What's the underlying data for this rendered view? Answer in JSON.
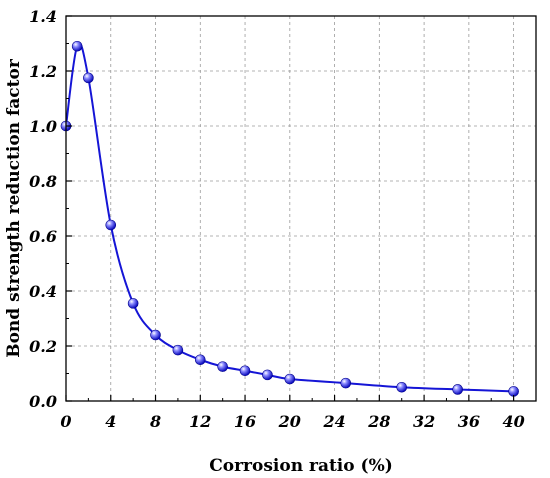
{
  "chart_data": {
    "type": "line",
    "title": "",
    "xlabel": "Corrosion ratio (%)",
    "ylabel": "Bond strength reduction factor",
    "xlim": [
      0,
      42
    ],
    "ylim": [
      0,
      1.4
    ],
    "xticks": [
      0,
      4,
      8,
      12,
      16,
      20,
      24,
      28,
      32,
      36,
      40
    ],
    "yticks": [
      0.0,
      0.2,
      0.4,
      0.6,
      0.8,
      1.0,
      1.2,
      1.4
    ],
    "xtick_labels": [
      "0",
      "4",
      "8",
      "12",
      "16",
      "20",
      "24",
      "28",
      "32",
      "36",
      "40"
    ],
    "ytick_labels": [
      "0.0",
      "0.2",
      "0.4",
      "0.6",
      "0.8",
      "1.0",
      "1.2",
      "1.4"
    ],
    "grid": true,
    "series": [
      {
        "color": "#1515d6",
        "marker": "sphere",
        "x": [
          0,
          1,
          2,
          4,
          6,
          8,
          10,
          12,
          14,
          16,
          18,
          20,
          25,
          30,
          35,
          40
        ],
        "y": [
          1.0,
          1.29,
          1.175,
          0.64,
          0.355,
          0.24,
          0.185,
          0.15,
          0.125,
          0.11,
          0.095,
          0.08,
          0.065,
          0.05,
          0.042,
          0.035
        ]
      }
    ]
  }
}
